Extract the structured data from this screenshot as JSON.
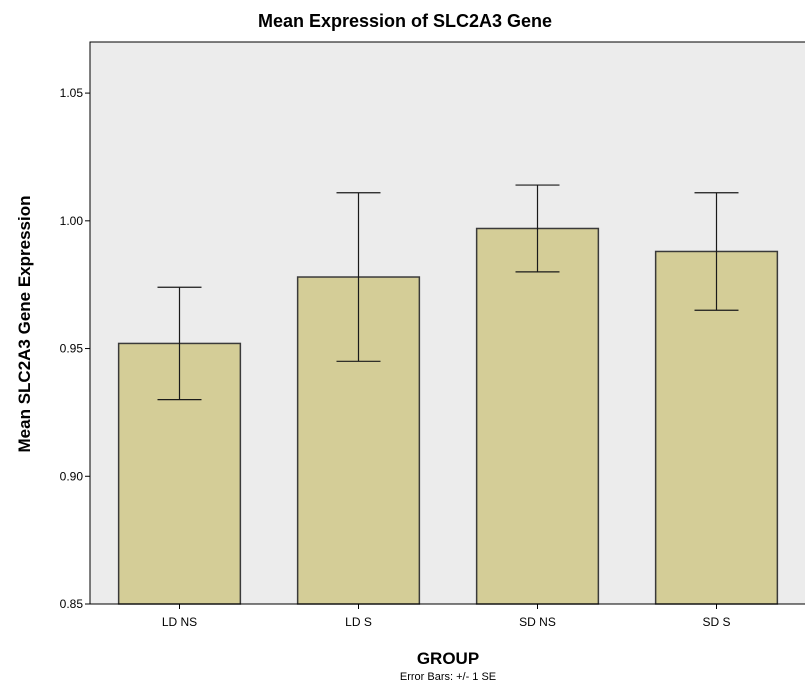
{
  "colors": {
    "plot_background": "#ececec",
    "bar_fill": "#d4cd97",
    "bar_stroke": "#3a3a3a",
    "axis": "#000000"
  },
  "chart_data": {
    "type": "bar",
    "title": "Mean Expression of SLC2A3 Gene",
    "xlabel": "GROUP",
    "ylabel": "Mean SLC2A3 Gene Expression",
    "footnote": "Error Bars: +/- 1 SE",
    "categories": [
      "LD NS",
      "LD S",
      "SD NS",
      "SD S"
    ],
    "values": [
      0.952,
      0.978,
      0.997,
      0.988
    ],
    "error_low": [
      0.93,
      0.945,
      0.98,
      0.965
    ],
    "error_high": [
      0.974,
      1.011,
      1.014,
      1.011
    ],
    "ylim": [
      0.85,
      1.07
    ],
    "yticks": [
      0.85,
      0.9,
      0.95,
      1.0,
      1.05
    ],
    "ytick_labels": [
      "0.85",
      "0.90",
      "0.95",
      "1.00",
      "1.05"
    ],
    "grid": false,
    "legend": "none"
  }
}
